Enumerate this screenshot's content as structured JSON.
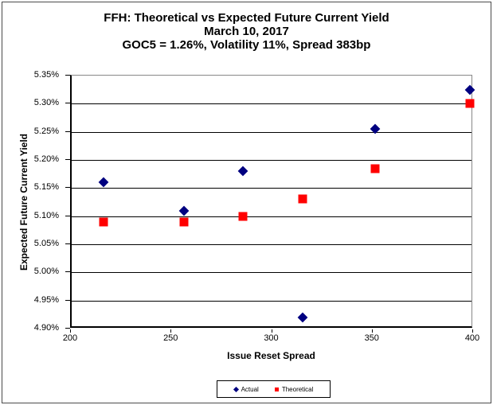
{
  "chart_data": {
    "type": "scatter",
    "title_lines": [
      "FFH: Theoretical vs Expected Future Current Yield",
      "March 10, 2017",
      "GOC5 = 1.26%, Volatility 11%, Spread 383bp"
    ],
    "xlabel": "Issue Reset Spread",
    "ylabel": "Expected Future Current Yield",
    "xlim": [
      200,
      400
    ],
    "ylim": [
      4.9,
      5.35
    ],
    "x_ticks": [
      {
        "value": 200,
        "label": "200"
      },
      {
        "value": 250,
        "label": "250"
      },
      {
        "value": 300,
        "label": "300"
      },
      {
        "value": 350,
        "label": "350"
      },
      {
        "value": 400,
        "label": "400"
      }
    ],
    "y_ticks": [
      {
        "value": 5.35,
        "label": "5.35%"
      },
      {
        "value": 5.3,
        "label": "5.30%"
      },
      {
        "value": 5.25,
        "label": "5.25%"
      },
      {
        "value": 5.2,
        "label": "5.20%"
      },
      {
        "value": 5.15,
        "label": "5.15%"
      },
      {
        "value": 5.1,
        "label": "5.10%"
      },
      {
        "value": 5.05,
        "label": "5.05%"
      },
      {
        "value": 5.0,
        "label": "5.00%"
      },
      {
        "value": 4.95,
        "label": "4.95%"
      },
      {
        "value": 4.9,
        "label": "4.90%"
      }
    ],
    "grid": true,
    "legend_position": "bottom",
    "series": [
      {
        "name": "Actual",
        "marker": "diamond",
        "color": "#000080",
        "points": [
          {
            "x": 216,
            "y": 5.16
          },
          {
            "x": 256,
            "y": 5.11
          },
          {
            "x": 285,
            "y": 5.18
          },
          {
            "x": 315,
            "y": 4.92
          },
          {
            "x": 351,
            "y": 5.255
          },
          {
            "x": 398,
            "y": 5.325
          }
        ]
      },
      {
        "name": "Theoretical",
        "marker": "square",
        "color": "#FF0000",
        "points": [
          {
            "x": 216,
            "y": 5.09
          },
          {
            "x": 256,
            "y": 5.09
          },
          {
            "x": 285,
            "y": 5.1
          },
          {
            "x": 315,
            "y": 5.13
          },
          {
            "x": 351,
            "y": 5.185
          },
          {
            "x": 398,
            "y": 5.3
          }
        ]
      }
    ],
    "colors": {
      "actual": "#000080",
      "theoretical": "#FF0000",
      "gridline": "#000000",
      "plot_border": "#888888"
    }
  }
}
